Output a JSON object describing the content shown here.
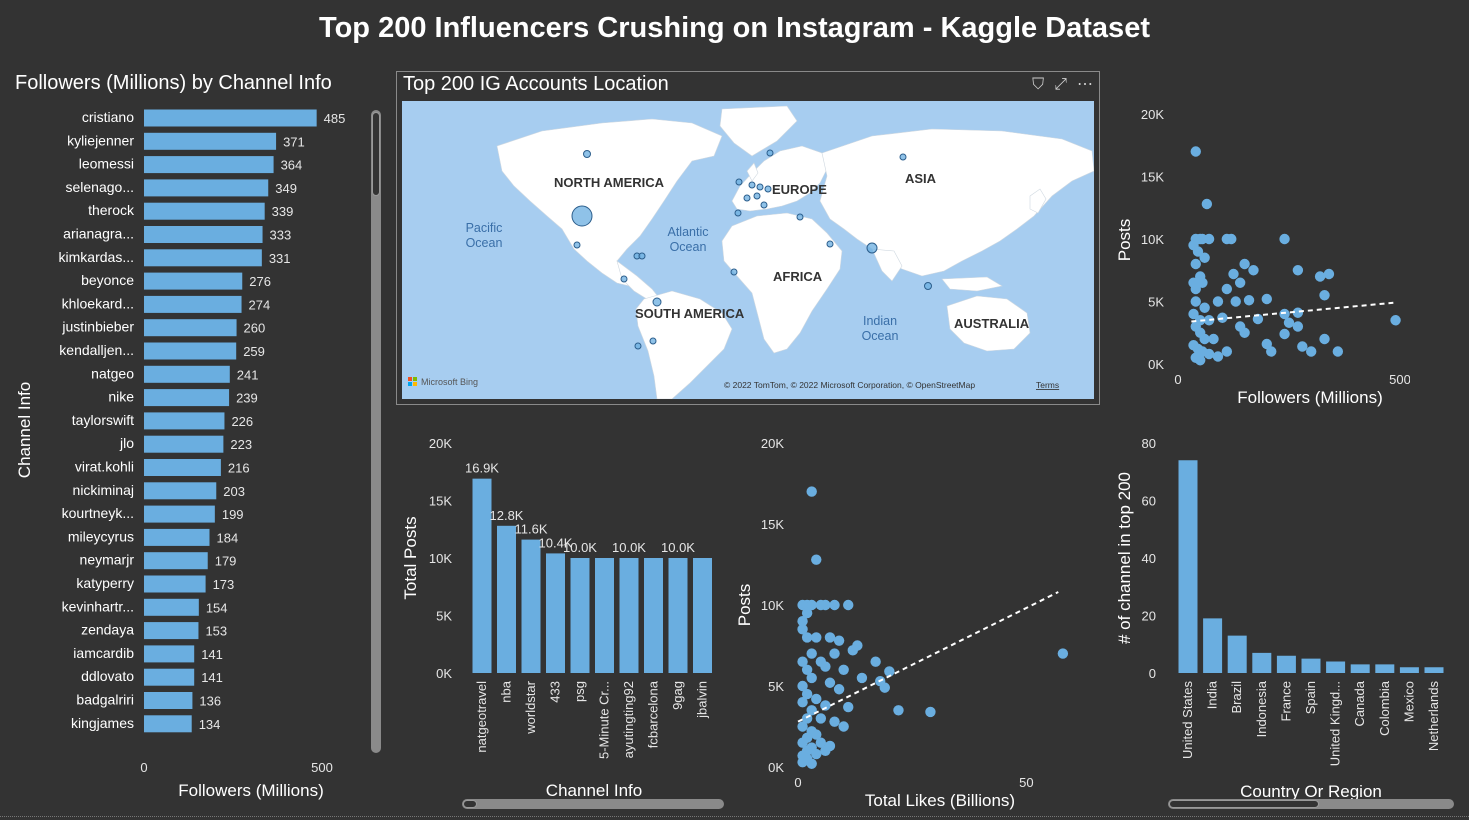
{
  "report": {
    "title": "Top 200 Influencers Crushing on Instagram - Kaggle Dataset"
  },
  "colors": {
    "background": "#333333",
    "bar": "#6aaee0",
    "point": "#6aaee0",
    "trend": "#ffffff",
    "ocean": "#a7cdf0",
    "land": "#ffffff"
  },
  "map": {
    "title": "Top 200 IG Accounts Location",
    "toolbar": {
      "filter_icon": "filter-icon",
      "focus_icon": "focus-mode-icon",
      "more_icon": "more-options-icon"
    },
    "continents": [
      "NORTH AMERICA",
      "EUROPE",
      "ASIA",
      "AFRICA",
      "SOUTH AMERICA",
      "AUSTRALIA"
    ],
    "oceans": [
      {
        "line1": "Pacific",
        "line2": "Ocean"
      },
      {
        "line1": "Atlantic",
        "line2": "Ocean"
      },
      {
        "line1": "Indian",
        "line2": "Ocean"
      }
    ],
    "bing_logo": "Microsoft Bing",
    "attribution": "© 2022 TomTom, © 2022 Microsoft Corporation, © OpenStreetMap",
    "terms": "Terms"
  },
  "chart_data": [
    {
      "id": "followers_by_channel",
      "type": "bar",
      "orientation": "horizontal",
      "title": "Followers (Millions) by Channel Info",
      "xlabel": "Followers (Millions)",
      "ylabel": "Channel Info",
      "xlim": [
        0,
        500
      ],
      "xticks": [
        "0",
        "500"
      ],
      "categories": [
        "cristiano",
        "kyliejenner",
        "leomessi",
        "selenago...",
        "therock",
        "arianagra...",
        "kimkardas...",
        "beyonce",
        "khloekard...",
        "justinbieber",
        "kendalljen...",
        "natgeo",
        "nike",
        "taylorswift",
        "jlo",
        "virat.kohli",
        "nickiminaj",
        "kourtneyk...",
        "mileycyrus",
        "neymarjr",
        "katyperry",
        "kevinhartr...",
        "zendaya",
        "iamcardib",
        "ddlovato",
        "badgalriri",
        "kingjames"
      ],
      "values": [
        485,
        371,
        364,
        349,
        339,
        333,
        331,
        276,
        274,
        260,
        259,
        241,
        239,
        226,
        223,
        216,
        203,
        199,
        184,
        179,
        173,
        154,
        153,
        141,
        141,
        136,
        134
      ]
    },
    {
      "id": "total_posts_by_channel",
      "type": "bar",
      "orientation": "vertical",
      "xlabel": "Channel Info",
      "ylabel": "Total Posts",
      "ylim": [
        0,
        20000
      ],
      "yticks": [
        "0K",
        "5K",
        "10K",
        "15K",
        "20K"
      ],
      "categories": [
        "natgeotravel",
        "nba",
        "worldstar",
        "433",
        "psg",
        "5-Minute Cr...",
        "ayutingting92",
        "fcbarcelona",
        "9gag",
        "jbalvin"
      ],
      "values": [
        16900,
        12800,
        11600,
        10400,
        10000,
        10000,
        10000,
        10000,
        10000,
        10000
      ],
      "data_labels": [
        "16.9K",
        "12.8K",
        "11.6K",
        "10.4K",
        "10.0K",
        "",
        "10.0K",
        "",
        "10.0K",
        ""
      ]
    },
    {
      "id": "posts_vs_likes",
      "type": "scatter",
      "xlabel": "Total Likes (Billions)",
      "ylabel": "Posts",
      "xlim": [
        0,
        60
      ],
      "ylim": [
        0,
        20000
      ],
      "xticks": [
        "0",
        "50"
      ],
      "yticks": [
        "0K",
        "5K",
        "10K",
        "15K",
        "20K"
      ],
      "trend": {
        "x": [
          0,
          57
        ],
        "y": [
          2800,
          10800
        ]
      },
      "points": [
        [
          3,
          17000
        ],
        [
          4,
          12800
        ],
        [
          1,
          10000
        ],
        [
          2,
          10000
        ],
        [
          3,
          10000
        ],
        [
          5,
          10000
        ],
        [
          6,
          10000
        ],
        [
          8,
          10000
        ],
        [
          11,
          10000
        ],
        [
          2,
          9500
        ],
        [
          1,
          9000
        ],
        [
          1,
          8500
        ],
        [
          2,
          8000
        ],
        [
          4,
          8000
        ],
        [
          7,
          8000
        ],
        [
          9,
          7800
        ],
        [
          13,
          7500
        ],
        [
          3,
          7000
        ],
        [
          8,
          7000
        ],
        [
          12,
          7200
        ],
        [
          1,
          6500
        ],
        [
          5,
          6500
        ],
        [
          2,
          6000
        ],
        [
          6,
          6200
        ],
        [
          10,
          6000
        ],
        [
          17,
          6500
        ],
        [
          20,
          5900
        ],
        [
          3,
          5500
        ],
        [
          1,
          5000
        ],
        [
          7,
          5200
        ],
        [
          14,
          5500
        ],
        [
          18,
          5300
        ],
        [
          19,
          4900
        ],
        [
          2,
          4500
        ],
        [
          4,
          4200
        ],
        [
          9,
          4800
        ],
        [
          1,
          4000
        ],
        [
          3,
          3500
        ],
        [
          6,
          3800
        ],
        [
          11,
          3700
        ],
        [
          2,
          3000
        ],
        [
          5,
          3000
        ],
        [
          8,
          2800
        ],
        [
          1,
          2500
        ],
        [
          3,
          2200
        ],
        [
          4,
          2000
        ],
        [
          2,
          1800
        ],
        [
          1,
          1500
        ],
        [
          3,
          1200
        ],
        [
          2,
          1000
        ],
        [
          5,
          1500
        ],
        [
          7,
          1300
        ],
        [
          1,
          700
        ],
        [
          2,
          500
        ],
        [
          1,
          300
        ],
        [
          3,
          200
        ],
        [
          4,
          800
        ],
        [
          6,
          1000
        ],
        [
          10,
          2500
        ],
        [
          22,
          3500
        ],
        [
          29,
          3400
        ],
        [
          58,
          7000
        ]
      ]
    },
    {
      "id": "posts_vs_followers",
      "type": "scatter",
      "xlabel": "Followers (Millions)",
      "ylabel": "Posts",
      "xlim": [
        0,
        500
      ],
      "ylim": [
        0,
        20000
      ],
      "xticks": [
        "0",
        "500"
      ],
      "yticks": [
        "0K",
        "5K",
        "10K",
        "15K",
        "20K"
      ],
      "trend": {
        "x": [
          30,
          485
        ],
        "y": [
          3400,
          4900
        ]
      },
      "points": [
        [
          40,
          17000
        ],
        [
          65,
          12800
        ],
        [
          40,
          10000
        ],
        [
          50,
          10000
        ],
        [
          55,
          10000
        ],
        [
          70,
          10000
        ],
        [
          110,
          10000
        ],
        [
          120,
          10000
        ],
        [
          240,
          10000
        ],
        [
          35,
          9500
        ],
        [
          45,
          9000
        ],
        [
          60,
          8500
        ],
        [
          40,
          8000
        ],
        [
          150,
          8000
        ],
        [
          170,
          7500
        ],
        [
          50,
          7000
        ],
        [
          125,
          7200
        ],
        [
          320,
          7000
        ],
        [
          340,
          7200
        ],
        [
          270,
          7500
        ],
        [
          35,
          6500
        ],
        [
          55,
          6500
        ],
        [
          110,
          6000
        ],
        [
          140,
          6500
        ],
        [
          40,
          6000
        ],
        [
          330,
          5500
        ],
        [
          90,
          5000
        ],
        [
          130,
          5000
        ],
        [
          160,
          5100
        ],
        [
          200,
          5200
        ],
        [
          40,
          5000
        ],
        [
          60,
          4500
        ],
        [
          240,
          4000
        ],
        [
          100,
          3700
        ],
        [
          180,
          3600
        ],
        [
          270,
          4100
        ],
        [
          490,
          3500
        ],
        [
          35,
          4000
        ],
        [
          50,
          3500
        ],
        [
          70,
          3500
        ],
        [
          140,
          3000
        ],
        [
          250,
          3300
        ],
        [
          270,
          3000
        ],
        [
          330,
          2000
        ],
        [
          360,
          1000
        ],
        [
          200,
          1600
        ],
        [
          210,
          1000
        ],
        [
          240,
          2400
        ],
        [
          280,
          1400
        ],
        [
          300,
          1000
        ],
        [
          150,
          2500
        ],
        [
          40,
          3000
        ],
        [
          50,
          2500
        ],
        [
          60,
          2000
        ],
        [
          80,
          2000
        ],
        [
          35,
          1500
        ],
        [
          45,
          1200
        ],
        [
          55,
          1000
        ],
        [
          70,
          800
        ],
        [
          40,
          500
        ],
        [
          50,
          300
        ],
        [
          90,
          600
        ],
        [
          110,
          1000
        ]
      ]
    },
    {
      "id": "channels_by_country",
      "type": "bar",
      "orientation": "vertical",
      "xlabel": "Country Or Region",
      "ylabel": "# of channel in top 200",
      "ylim": [
        0,
        80
      ],
      "yticks": [
        "0",
        "20",
        "40",
        "60",
        "80"
      ],
      "categories": [
        "United States",
        "India",
        "Brazil",
        "Indonesia",
        "France",
        "Spain",
        "United Kingd...",
        "Canada",
        "Colombia",
        "Mexico",
        "Netherlands"
      ],
      "values": [
        74,
        19,
        13,
        7,
        6,
        5,
        4,
        3,
        3,
        2,
        2
      ]
    }
  ]
}
